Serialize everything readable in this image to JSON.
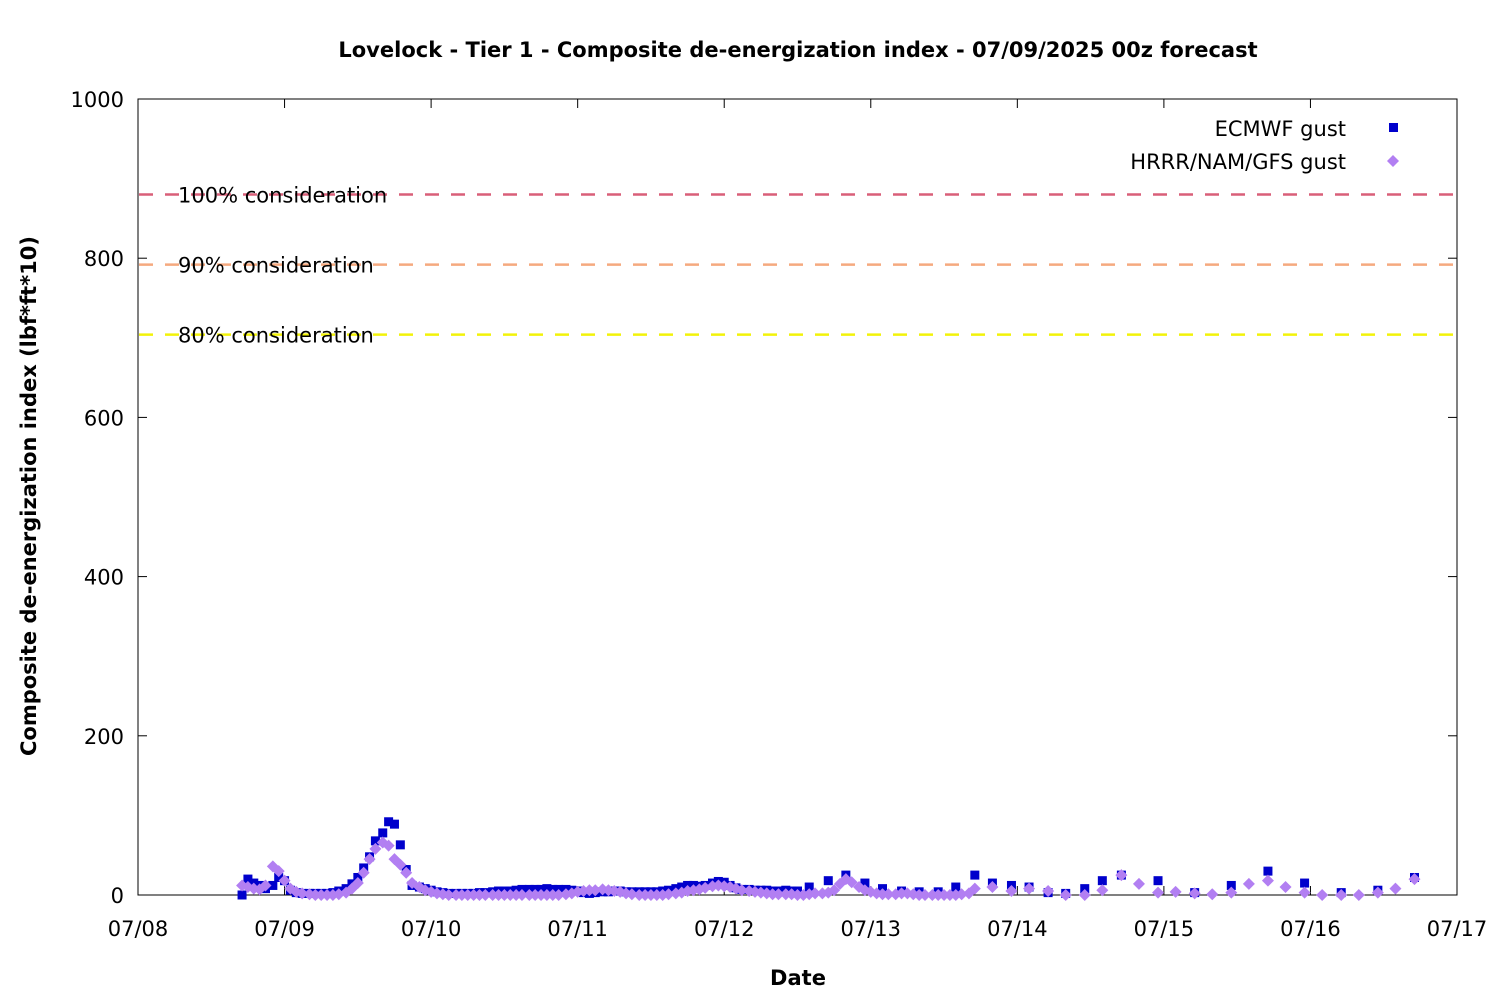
{
  "chart_data": {
    "type": "scatter",
    "title": "Lovelock - Tier 1 - Composite de-energization index - 07/09/2025 00z forecast",
    "xlabel": "Date",
    "ylabel": "Composite de-energization index (lbf*ft*10)",
    "ylim": [
      0,
      1000
    ],
    "xlim": [
      0,
      9
    ],
    "x_origin_date": "07/08",
    "x_ticks": [
      {
        "x": 0,
        "label": "07/08"
      },
      {
        "x": 1,
        "label": "07/09"
      },
      {
        "x": 2,
        "label": "07/10"
      },
      {
        "x": 3,
        "label": "07/11"
      },
      {
        "x": 4,
        "label": "07/12"
      },
      {
        "x": 5,
        "label": "07/13"
      },
      {
        "x": 6,
        "label": "07/14"
      },
      {
        "x": 7,
        "label": "07/15"
      },
      {
        "x": 8,
        "label": "07/16"
      },
      {
        "x": 9,
        "label": "07/17"
      }
    ],
    "y_ticks": [
      0,
      200,
      400,
      600,
      800,
      1000
    ],
    "legend_position": "top-right",
    "thresholds": [
      {
        "label": "100% consideration",
        "value": 880,
        "color": "#d95f78"
      },
      {
        "label": "90% consideration",
        "value": 792,
        "color": "#f5a97f"
      },
      {
        "label": "80% consideration",
        "value": 704,
        "color": "#f2f20a"
      }
    ],
    "series": [
      {
        "name": "ECMWF gust",
        "marker": "square",
        "color": "#0000cc",
        "points": [
          [
            0.71,
            0
          ],
          [
            0.75,
            20
          ],
          [
            0.79,
            15
          ],
          [
            0.83,
            12
          ],
          [
            0.87,
            8
          ],
          [
            0.92,
            12
          ],
          [
            0.96,
            22
          ],
          [
            1.0,
            18
          ],
          [
            1.04,
            6
          ],
          [
            1.08,
            3
          ],
          [
            1.12,
            2
          ],
          [
            1.17,
            2
          ],
          [
            1.21,
            2
          ],
          [
            1.25,
            2
          ],
          [
            1.29,
            2
          ],
          [
            1.33,
            3
          ],
          [
            1.37,
            5
          ],
          [
            1.42,
            8
          ],
          [
            1.46,
            14
          ],
          [
            1.5,
            22
          ],
          [
            1.54,
            34
          ],
          [
            1.58,
            48
          ],
          [
            1.62,
            68
          ],
          [
            1.67,
            78
          ],
          [
            1.71,
            92
          ],
          [
            1.75,
            89
          ],
          [
            1.79,
            63
          ],
          [
            1.83,
            32
          ],
          [
            1.87,
            12
          ],
          [
            1.92,
            10
          ],
          [
            1.96,
            8
          ],
          [
            2.0,
            6
          ],
          [
            2.04,
            4
          ],
          [
            2.08,
            3
          ],
          [
            2.12,
            2
          ],
          [
            2.17,
            2
          ],
          [
            2.21,
            2
          ],
          [
            2.25,
            2
          ],
          [
            2.29,
            2
          ],
          [
            2.33,
            3
          ],
          [
            2.37,
            3
          ],
          [
            2.42,
            4
          ],
          [
            2.46,
            5
          ],
          [
            2.5,
            5
          ],
          [
            2.54,
            5
          ],
          [
            2.58,
            6
          ],
          [
            2.62,
            7
          ],
          [
            2.67,
            7
          ],
          [
            2.71,
            7
          ],
          [
            2.75,
            7
          ],
          [
            2.79,
            8
          ],
          [
            2.83,
            7
          ],
          [
            2.87,
            7
          ],
          [
            2.92,
            7
          ],
          [
            2.96,
            6
          ],
          [
            3.0,
            5
          ],
          [
            3.04,
            3
          ],
          [
            3.08,
            2
          ],
          [
            3.12,
            3
          ],
          [
            3.17,
            4
          ],
          [
            3.21,
            4
          ],
          [
            3.25,
            5
          ],
          [
            3.29,
            5
          ],
          [
            3.33,
            4
          ],
          [
            3.37,
            4
          ],
          [
            3.42,
            4
          ],
          [
            3.46,
            4
          ],
          [
            3.5,
            4
          ],
          [
            3.54,
            4
          ],
          [
            3.58,
            5
          ],
          [
            3.62,
            6
          ],
          [
            3.67,
            8
          ],
          [
            3.71,
            10
          ],
          [
            3.75,
            12
          ],
          [
            3.79,
            12
          ],
          [
            3.83,
            11
          ],
          [
            3.87,
            12
          ],
          [
            3.92,
            15
          ],
          [
            3.96,
            17
          ],
          [
            4.0,
            16
          ],
          [
            4.04,
            12
          ],
          [
            4.08,
            9
          ],
          [
            4.12,
            7
          ],
          [
            4.17,
            7
          ],
          [
            4.21,
            6
          ],
          [
            4.25,
            6
          ],
          [
            4.29,
            6
          ],
          [
            4.33,
            5
          ],
          [
            4.37,
            5
          ],
          [
            4.42,
            6
          ],
          [
            4.46,
            5
          ],
          [
            4.5,
            5
          ],
          [
            4.58,
            10
          ],
          [
            4.71,
            18
          ],
          [
            4.83,
            25
          ],
          [
            4.96,
            15
          ],
          [
            5.08,
            8
          ],
          [
            5.21,
            5
          ],
          [
            5.33,
            4
          ],
          [
            5.46,
            4
          ],
          [
            5.58,
            10
          ],
          [
            5.71,
            25
          ],
          [
            5.83,
            15
          ],
          [
            5.96,
            12
          ],
          [
            6.08,
            10
          ],
          [
            6.21,
            3
          ],
          [
            6.33,
            2
          ],
          [
            6.46,
            8
          ],
          [
            6.58,
            18
          ],
          [
            6.71,
            25
          ],
          [
            6.96,
            18
          ],
          [
            7.21,
            3
          ],
          [
            7.46,
            12
          ],
          [
            7.71,
            30
          ],
          [
            7.96,
            15
          ],
          [
            8.21,
            3
          ],
          [
            8.46,
            6
          ],
          [
            8.71,
            22
          ]
        ]
      },
      {
        "name": "HRRR/NAM/GFS gust",
        "marker": "diamond",
        "color": "#b27ff2",
        "points": [
          [
            0.71,
            12
          ],
          [
            0.75,
            10
          ],
          [
            0.79,
            8
          ],
          [
            0.83,
            7
          ],
          [
            0.87,
            12
          ],
          [
            0.92,
            36
          ],
          [
            0.96,
            30
          ],
          [
            1.0,
            18
          ],
          [
            1.04,
            8
          ],
          [
            1.08,
            4
          ],
          [
            1.12,
            2
          ],
          [
            1.17,
            1
          ],
          [
            1.21,
            0
          ],
          [
            1.25,
            0
          ],
          [
            1.29,
            0
          ],
          [
            1.33,
            0
          ],
          [
            1.37,
            1
          ],
          [
            1.42,
            3
          ],
          [
            1.46,
            8
          ],
          [
            1.5,
            15
          ],
          [
            1.54,
            28
          ],
          [
            1.58,
            45
          ],
          [
            1.62,
            58
          ],
          [
            1.67,
            66
          ],
          [
            1.71,
            62
          ],
          [
            1.75,
            45
          ],
          [
            1.79,
            38
          ],
          [
            1.83,
            28
          ],
          [
            1.87,
            15
          ],
          [
            1.92,
            10
          ],
          [
            1.96,
            6
          ],
          [
            2.0,
            4
          ],
          [
            2.04,
            2
          ],
          [
            2.08,
            1
          ],
          [
            2.12,
            0
          ],
          [
            2.17,
            0
          ],
          [
            2.21,
            0
          ],
          [
            2.25,
            0
          ],
          [
            2.29,
            0
          ],
          [
            2.33,
            0
          ],
          [
            2.37,
            0
          ],
          [
            2.42,
            0
          ],
          [
            2.46,
            0
          ],
          [
            2.5,
            0
          ],
          [
            2.54,
            0
          ],
          [
            2.58,
            0
          ],
          [
            2.62,
            0
          ],
          [
            2.67,
            0
          ],
          [
            2.71,
            0
          ],
          [
            2.75,
            0
          ],
          [
            2.79,
            0
          ],
          [
            2.83,
            0
          ],
          [
            2.87,
            0
          ],
          [
            2.92,
            1
          ],
          [
            2.96,
            2
          ],
          [
            3.0,
            4
          ],
          [
            3.04,
            5
          ],
          [
            3.08,
            6
          ],
          [
            3.12,
            6
          ],
          [
            3.17,
            7
          ],
          [
            3.21,
            6
          ],
          [
            3.25,
            5
          ],
          [
            3.29,
            4
          ],
          [
            3.33,
            2
          ],
          [
            3.37,
            1
          ],
          [
            3.42,
            0
          ],
          [
            3.46,
            0
          ],
          [
            3.5,
            0
          ],
          [
            3.54,
            0
          ],
          [
            3.58,
            0
          ],
          [
            3.62,
            1
          ],
          [
            3.67,
            2
          ],
          [
            3.71,
            3
          ],
          [
            3.75,
            5
          ],
          [
            3.79,
            6
          ],
          [
            3.83,
            7
          ],
          [
            3.87,
            9
          ],
          [
            3.92,
            11
          ],
          [
            3.96,
            12
          ],
          [
            4.0,
            11
          ],
          [
            4.04,
            10
          ],
          [
            4.08,
            8
          ],
          [
            4.12,
            6
          ],
          [
            4.17,
            5
          ],
          [
            4.21,
            4
          ],
          [
            4.25,
            3
          ],
          [
            4.29,
            2
          ],
          [
            4.33,
            1
          ],
          [
            4.37,
            1
          ],
          [
            4.42,
            1
          ],
          [
            4.46,
            1
          ],
          [
            4.5,
            0
          ],
          [
            4.54,
            0
          ],
          [
            4.58,
            1
          ],
          [
            4.62,
            2
          ],
          [
            4.67,
            2
          ],
          [
            4.71,
            3
          ],
          [
            4.75,
            6
          ],
          [
            4.79,
            14
          ],
          [
            4.83,
            20
          ],
          [
            4.87,
            16
          ],
          [
            4.92,
            10
          ],
          [
            4.96,
            6
          ],
          [
            5.0,
            4
          ],
          [
            5.04,
            2
          ],
          [
            5.08,
            1
          ],
          [
            5.12,
            1
          ],
          [
            5.17,
            1
          ],
          [
            5.21,
            2
          ],
          [
            5.25,
            2
          ],
          [
            5.29,
            1
          ],
          [
            5.33,
            0
          ],
          [
            5.37,
            0
          ],
          [
            5.42,
            0
          ],
          [
            5.46,
            0
          ],
          [
            5.5,
            0
          ],
          [
            5.54,
            0
          ],
          [
            5.58,
            0
          ],
          [
            5.62,
            1
          ],
          [
            5.67,
            2
          ],
          [
            5.71,
            8
          ],
          [
            5.83,
            10
          ],
          [
            5.96,
            5
          ],
          [
            6.08,
            8
          ],
          [
            6.21,
            5
          ],
          [
            6.33,
            0
          ],
          [
            6.46,
            0
          ],
          [
            6.58,
            6
          ],
          [
            6.71,
            25
          ],
          [
            6.83,
            14
          ],
          [
            6.96,
            3
          ],
          [
            7.08,
            4
          ],
          [
            7.21,
            2
          ],
          [
            7.33,
            1
          ],
          [
            7.46,
            3
          ],
          [
            7.58,
            14
          ],
          [
            7.71,
            18
          ],
          [
            7.83,
            10
          ],
          [
            7.96,
            3
          ],
          [
            8.08,
            0
          ],
          [
            8.21,
            0
          ],
          [
            8.33,
            0
          ],
          [
            8.46,
            3
          ],
          [
            8.58,
            8
          ],
          [
            8.71,
            20
          ]
        ]
      }
    ]
  }
}
